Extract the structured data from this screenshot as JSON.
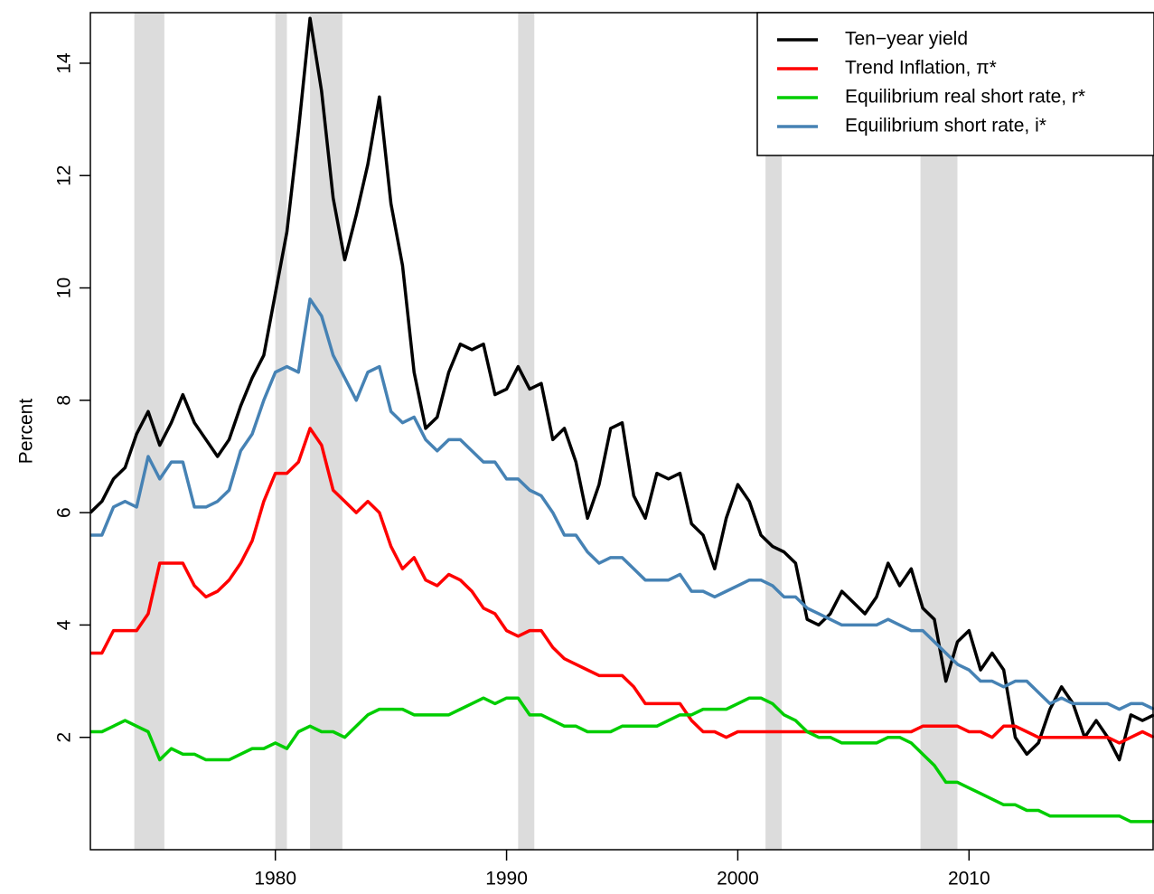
{
  "chart_data": {
    "type": "line",
    "y_label": "Percent",
    "x": [
      1972,
      1972.5,
      1973,
      1973.5,
      1974,
      1974.5,
      1975,
      1975.5,
      1976,
      1976.5,
      1977,
      1977.5,
      1978,
      1978.5,
      1979,
      1979.5,
      1980,
      1980.5,
      1981,
      1981.5,
      1982,
      1982.5,
      1983,
      1983.5,
      1984,
      1984.5,
      1985,
      1985.5,
      1986,
      1986.5,
      1987,
      1987.5,
      1988,
      1988.5,
      1989,
      1989.5,
      1990,
      1990.5,
      1991,
      1991.5,
      1992,
      1992.5,
      1993,
      1993.5,
      1994,
      1994.5,
      1995,
      1995.5,
      1996,
      1996.5,
      1997,
      1997.5,
      1998,
      1998.5,
      1999,
      1999.5,
      2000,
      2000.5,
      2001,
      2001.5,
      2002,
      2002.5,
      2003,
      2003.5,
      2004,
      2004.5,
      2005,
      2005.5,
      2006,
      2006.5,
      2007,
      2007.5,
      2008,
      2008.5,
      2009,
      2009.5,
      2010,
      2010.5,
      2011,
      2011.5,
      2012,
      2012.5,
      2013,
      2013.5,
      2014,
      2014.5,
      2015,
      2015.5,
      2016,
      2016.5,
      2017,
      2017.5,
      2018
    ],
    "series": [
      {
        "name": "Ten−year yield",
        "color": "#000000",
        "values": [
          6.0,
          6.2,
          6.6,
          6.8,
          7.4,
          7.8,
          7.2,
          7.6,
          8.1,
          7.6,
          7.3,
          7.0,
          7.3,
          7.9,
          8.4,
          8.8,
          9.9,
          11.0,
          12.8,
          14.8,
          13.5,
          11.6,
          10.5,
          11.3,
          12.2,
          13.4,
          11.5,
          10.4,
          8.5,
          7.5,
          7.7,
          8.5,
          9.0,
          8.9,
          9.0,
          8.1,
          8.2,
          8.6,
          8.2,
          8.3,
          7.3,
          7.5,
          6.9,
          5.9,
          6.5,
          7.5,
          7.6,
          6.3,
          5.9,
          6.7,
          6.6,
          6.7,
          5.8,
          5.6,
          5.0,
          5.9,
          6.5,
          6.2,
          5.6,
          5.4,
          5.3,
          5.1,
          4.1,
          4.0,
          4.2,
          4.6,
          4.4,
          4.2,
          4.5,
          5.1,
          4.7,
          5.0,
          4.3,
          4.1,
          3.0,
          3.7,
          3.9,
          3.2,
          3.5,
          3.2,
          2.0,
          1.7,
          1.9,
          2.5,
          2.9,
          2.6,
          2.0,
          2.3,
          2.0,
          1.6,
          2.4,
          2.3,
          2.4
        ]
      },
      {
        "name": "Trend Inflation, π*",
        "color": "#ff0000",
        "values": [
          3.5,
          3.5,
          3.9,
          3.9,
          3.9,
          4.2,
          5.1,
          5.1,
          5.1,
          4.7,
          4.5,
          4.6,
          4.8,
          5.1,
          5.5,
          6.2,
          6.7,
          6.7,
          6.9,
          7.5,
          7.2,
          6.4,
          6.2,
          6.0,
          6.2,
          6.0,
          5.4,
          5.0,
          5.2,
          4.8,
          4.7,
          4.9,
          4.8,
          4.6,
          4.3,
          4.2,
          3.9,
          3.8,
          3.9,
          3.9,
          3.6,
          3.4,
          3.3,
          3.2,
          3.1,
          3.1,
          3.1,
          2.9,
          2.6,
          2.6,
          2.6,
          2.6,
          2.3,
          2.1,
          2.1,
          2.0,
          2.1,
          2.1,
          2.1,
          2.1,
          2.1,
          2.1,
          2.1,
          2.1,
          2.1,
          2.1,
          2.1,
          2.1,
          2.1,
          2.1,
          2.1,
          2.1,
          2.2,
          2.2,
          2.2,
          2.2,
          2.1,
          2.1,
          2.0,
          2.2,
          2.2,
          2.1,
          2.0,
          2.0,
          2.0,
          2.0,
          2.0,
          2.0,
          2.0,
          1.9,
          2.0,
          2.1,
          2.0
        ]
      },
      {
        "name": "Equilibrium real short rate, r*",
        "color": "#00cd00",
        "values": [
          2.1,
          2.1,
          2.2,
          2.3,
          2.2,
          2.1,
          1.6,
          1.8,
          1.7,
          1.7,
          1.6,
          1.6,
          1.6,
          1.7,
          1.8,
          1.8,
          1.9,
          1.8,
          2.1,
          2.2,
          2.1,
          2.1,
          2.0,
          2.2,
          2.4,
          2.5,
          2.5,
          2.5,
          2.4,
          2.4,
          2.4,
          2.4,
          2.5,
          2.6,
          2.7,
          2.6,
          2.7,
          2.7,
          2.4,
          2.4,
          2.3,
          2.2,
          2.2,
          2.1,
          2.1,
          2.1,
          2.2,
          2.2,
          2.2,
          2.2,
          2.3,
          2.4,
          2.4,
          2.5,
          2.5,
          2.5,
          2.6,
          2.7,
          2.7,
          2.6,
          2.4,
          2.3,
          2.1,
          2.0,
          2.0,
          1.9,
          1.9,
          1.9,
          1.9,
          2.0,
          2.0,
          1.9,
          1.7,
          1.5,
          1.2,
          1.2,
          1.1,
          1.0,
          0.9,
          0.8,
          0.8,
          0.7,
          0.7,
          0.6,
          0.6,
          0.6,
          0.6,
          0.6,
          0.6,
          0.6,
          0.5,
          0.5,
          0.5
        ]
      },
      {
        "name": "Equilibrium short rate, i*",
        "color": "#4682b4",
        "values": [
          5.6,
          5.6,
          6.1,
          6.2,
          6.1,
          7.0,
          6.6,
          6.9,
          6.9,
          6.1,
          6.1,
          6.2,
          6.4,
          7.1,
          7.4,
          8.0,
          8.5,
          8.6,
          8.5,
          9.8,
          9.5,
          8.8,
          8.4,
          8.0,
          8.5,
          8.6,
          7.8,
          7.6,
          7.7,
          7.3,
          7.1,
          7.3,
          7.3,
          7.1,
          6.9,
          6.9,
          6.6,
          6.6,
          6.4,
          6.3,
          6.0,
          5.6,
          5.6,
          5.3,
          5.1,
          5.2,
          5.2,
          5.0,
          4.8,
          4.8,
          4.8,
          4.9,
          4.6,
          4.6,
          4.5,
          4.6,
          4.7,
          4.8,
          4.8,
          4.7,
          4.5,
          4.5,
          4.3,
          4.2,
          4.1,
          4.0,
          4.0,
          4.0,
          4.0,
          4.1,
          4.0,
          3.9,
          3.9,
          3.7,
          3.5,
          3.3,
          3.2,
          3.0,
          3.0,
          2.9,
          3.0,
          3.0,
          2.8,
          2.6,
          2.7,
          2.6,
          2.6,
          2.6,
          2.6,
          2.5,
          2.6,
          2.6,
          2.5
        ]
      }
    ],
    "recessions": [
      [
        1973.9,
        1975.2
      ],
      [
        1980.0,
        1980.5
      ],
      [
        1981.5,
        1982.9
      ],
      [
        1990.5,
        1991.2
      ],
      [
        2001.2,
        2001.9
      ],
      [
        2007.9,
        2009.5
      ]
    ],
    "recession_color": "#dcdcdc",
    "xlim": [
      1972,
      2018
    ],
    "xticks": [
      1980,
      1990,
      2000,
      2010
    ],
    "ylim": [
      0,
      14.9
    ],
    "yticks": [
      2,
      4,
      6,
      8,
      10,
      12,
      14
    ],
    "legend": "topright"
  }
}
